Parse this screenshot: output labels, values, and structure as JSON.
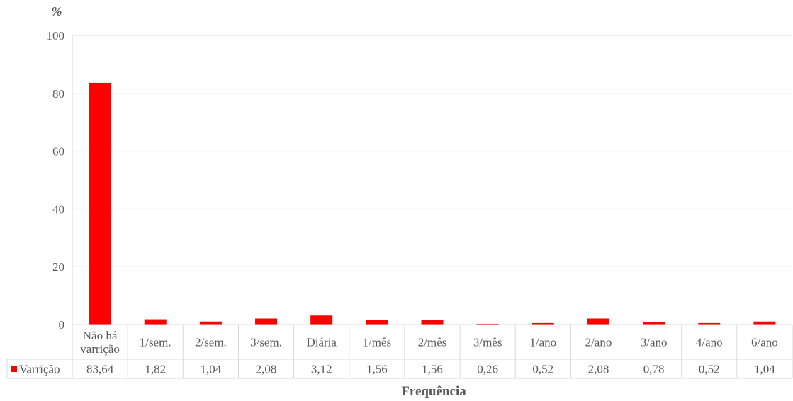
{
  "chart_data": {
    "type": "bar",
    "title": "",
    "ylabel": "%",
    "xlabel": "Frequência",
    "ylim": [
      0,
      100
    ],
    "yticks": [
      0,
      20,
      40,
      60,
      80,
      100
    ],
    "grid": true,
    "legend_position": "data-table-left",
    "categories": [
      [
        "Não há",
        "varrição"
      ],
      [
        "1/sem."
      ],
      [
        "2/sem."
      ],
      [
        "3/sem."
      ],
      [
        "Diária"
      ],
      [
        "1/mês"
      ],
      [
        "2/mês"
      ],
      [
        "3/mês"
      ],
      [
        "1/ano"
      ],
      [
        "2/ano"
      ],
      [
        "3/ano"
      ],
      [
        "4/ano"
      ],
      [
        "6/ano"
      ]
    ],
    "series": [
      {
        "name": "Varrição",
        "color": "#ff0000",
        "values": [
          83.64,
          1.82,
          1.04,
          2.08,
          3.12,
          1.56,
          1.56,
          0.26,
          0.52,
          2.08,
          0.78,
          0.52,
          1.04
        ],
        "labels": [
          "83,64",
          "1,82",
          "1,04",
          "2,08",
          "3,12",
          "1,56",
          "1,56",
          "0,26",
          "0,52",
          "2,08",
          "0,78",
          "0,52",
          "1,04"
        ]
      }
    ],
    "colors": {
      "grid": "#d9d9d9",
      "text": "#595959",
      "table_border": "#d9d9d9"
    }
  }
}
